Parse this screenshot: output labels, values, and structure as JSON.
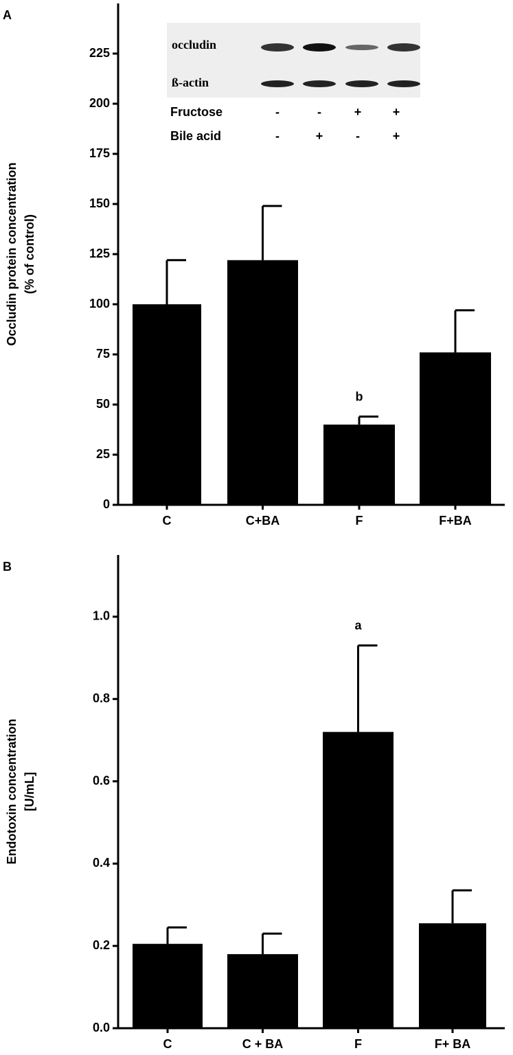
{
  "chart_data": [
    {
      "type": "bar",
      "panel": "A",
      "ylabel": [
        "Occludin protein concentration",
        "(% of control)"
      ],
      "categories": [
        "C",
        "C+BA",
        "F",
        "F+BA"
      ],
      "values": [
        100,
        122,
        40,
        76
      ],
      "errors": [
        22,
        27,
        4,
        21
      ],
      "annotations": [
        null,
        null,
        "b",
        null
      ],
      "color": "#000000",
      "ylim": [
        0,
        250
      ],
      "yticks": [
        0,
        25,
        50,
        75,
        100,
        125,
        150,
        175,
        200,
        225
      ],
      "inset": {
        "bands": [
          "occludin",
          "ß-actin"
        ],
        "rows": [
          {
            "label": "Fructose",
            "signs": [
              "-",
              "-",
              "+",
              "+"
            ]
          },
          {
            "label": "Bile acid",
            "signs": [
              "-",
              "+",
              "-",
              "+"
            ]
          }
        ]
      }
    },
    {
      "type": "bar",
      "panel": "B",
      "ylabel": [
        "Endotoxin concentration",
        "[U/mL]"
      ],
      "categories": [
        "C",
        "C + BA",
        "F",
        "F+ BA"
      ],
      "values": [
        0.205,
        0.18,
        0.72,
        0.255
      ],
      "errors": [
        0.04,
        0.05,
        0.21,
        0.08
      ],
      "annotations": [
        null,
        null,
        "a",
        null
      ],
      "color": "#000000",
      "ylim": [
        0,
        1.15
      ],
      "yticks": [
        {
          "value": 0,
          "label": "0.0"
        },
        0.2,
        0.4,
        0.6,
        0.8,
        {
          "value": 1,
          "label": "1.0"
        }
      ]
    }
  ]
}
